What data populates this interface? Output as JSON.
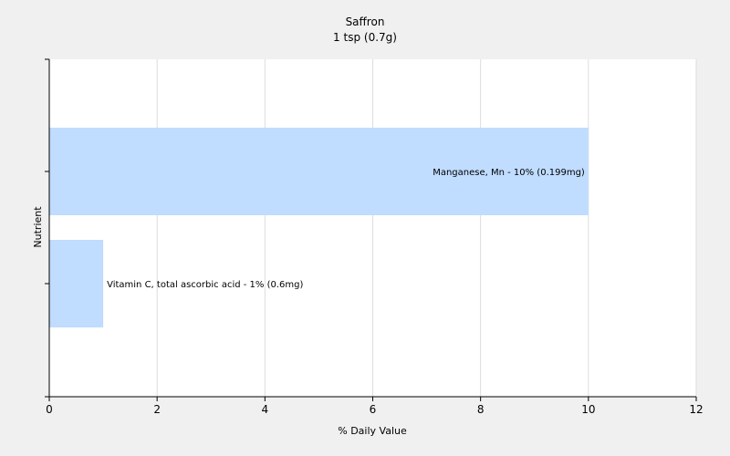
{
  "chart_data": {
    "type": "bar",
    "orientation": "horizontal",
    "title": "Saffron",
    "subtitle": "1 tsp (0.7g)",
    "xlabel": "% Daily Value",
    "ylabel": "Nutrient",
    "xlim": [
      0,
      12
    ],
    "xticks": [
      "0",
      "2",
      "4",
      "6",
      "8",
      "10",
      "12"
    ],
    "grid": true,
    "bars": [
      {
        "category": "Manganese, Mn",
        "value": 10,
        "label": "Manganese, Mn - 10% (0.199mg)"
      },
      {
        "category": "Vitamin C, total ascorbic acid",
        "value": 1,
        "label": "Vitamin C, total ascorbic acid - 1% (0.6mg)"
      }
    ],
    "colors": {
      "background": "#f0f0f0",
      "plot_background": "#ffffff",
      "bar": "#c0dcff",
      "grid": "#dcdcdc",
      "axis": "#000000"
    }
  }
}
